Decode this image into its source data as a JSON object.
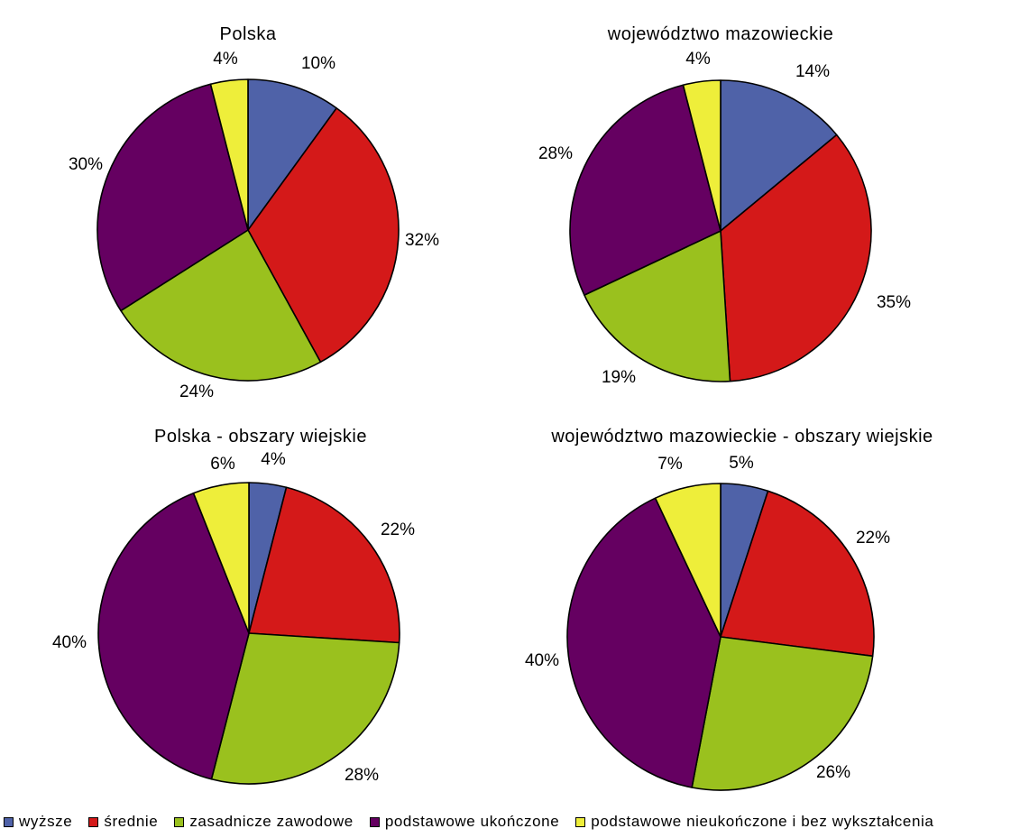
{
  "legend": [
    {
      "label": "wyższe",
      "color": "#4f62a8"
    },
    {
      "label": "średnie",
      "color": "#d41919"
    },
    {
      "label": "zasadnicze zawodowe",
      "color": "#9ac11e"
    },
    {
      "label": "podstawowe ukończone",
      "color": "#650061"
    },
    {
      "label": "podstawowe nieukończone i bez wykształcenia",
      "color": "#eeee3a"
    }
  ],
  "chart_data": [
    {
      "type": "pie",
      "title": "Polska",
      "categories": [
        "wyższe",
        "średnie",
        "zasadnicze zawodowe",
        "podstawowe ukończone",
        "podstawowe nieukończone i bez wykształcenia"
      ],
      "values": [
        10,
        32,
        24,
        30,
        4
      ],
      "labels": [
        "10%",
        "32%",
        "24%",
        "30%",
        "4%"
      ]
    },
    {
      "type": "pie",
      "title": "województwo mazowieckie",
      "categories": [
        "wyższe",
        "średnie",
        "zasadnicze zawodowe",
        "podstawowe ukończone",
        "podstawowe nieukończone i bez wykształcenia"
      ],
      "values": [
        14,
        35,
        19,
        28,
        4
      ],
      "labels": [
        "14%",
        "35%",
        "19%",
        "28%",
        "4%"
      ]
    },
    {
      "type": "pie",
      "title": "Polska - obszary wiejskie",
      "categories": [
        "wyższe",
        "średnie",
        "zasadnicze zawodowe",
        "podstawowe ukończone",
        "podstawowe nieukończone i bez wykształcenia"
      ],
      "values": [
        4,
        22,
        28,
        40,
        6
      ],
      "labels": [
        "4%",
        "22%",
        "28%",
        "40%",
        "6%"
      ]
    },
    {
      "type": "pie",
      "title": "województwo mazowieckie - obszary wiejskie",
      "categories": [
        "wyższe",
        "średnie",
        "zasadnicze zawodowe",
        "podstawowe ukończone",
        "podstawowe nieukończone i bez wykształcenia"
      ],
      "values": [
        5,
        22,
        26,
        40,
        7
      ],
      "labels": [
        "5%",
        "22%",
        "26%",
        "40%",
        "7%"
      ]
    }
  ]
}
